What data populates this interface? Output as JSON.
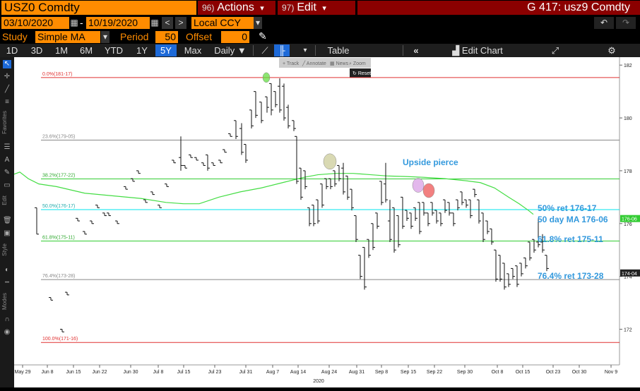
{
  "header": {
    "ticker": "USZ0 Comdty",
    "actions_num": "96)",
    "actions_label": "Actions",
    "edit_num": "97)",
    "edit_label": "Edit",
    "right_title": "G 417: usz9 Comdty",
    "dropdown_arrow": "▾"
  },
  "params": {
    "start_date": "03/10/2020",
    "dash": "-",
    "end_date": "10/19/2020",
    "currency": "Local CCY",
    "study_label": "Study",
    "study_value": "Simple MA",
    "period_label": "Period",
    "period_value": "50",
    "offset_label": "Offset",
    "offset_value": "0"
  },
  "toolbar": {
    "periods": [
      "1D",
      "3D",
      "1M",
      "6M",
      "YTD",
      "1Y",
      "5Y",
      "Max"
    ],
    "active_period": "5Y",
    "frequency": "Daily",
    "table_label": "Table",
    "edit_chart_label": "Edit Chart"
  },
  "sidebar": {
    "favorites_label": "Favorites",
    "edit_label": "Edit",
    "style_label": "Style",
    "modes_label": "Modes"
  },
  "chart_toolbar": {
    "track": "Track",
    "annotate": "Annotate",
    "news": "News",
    "zoom": "Zoom",
    "reset": "Reset"
  },
  "chart_data": {
    "type": "ohlc",
    "x_ticks": [
      "May 29",
      "Jun 8",
      "Jun 15",
      "Jun 22",
      "Jun 30",
      "Jul 8",
      "Jul 15",
      "Jul 23",
      "Jul 31",
      "Aug 7",
      "Aug 14",
      "Aug 24",
      "Aug 31",
      "Sep 8",
      "Sep 15",
      "Sep 22",
      "Sep 30",
      "Oct 8",
      "Oct 15",
      "Oct 23",
      "Oct 30",
      "Nov 9"
    ],
    "year_label": "2020",
    "y_ticks": [
      182,
      180,
      178,
      176,
      174,
      172
    ],
    "ylim": [
      170.65,
      182.3
    ],
    "fib_levels": [
      {
        "label": "0.0%(181-17)",
        "value": 181.53,
        "color": "#e03030"
      },
      {
        "label": "23.6%(179-05)",
        "value": 179.16,
        "color": "#888888"
      },
      {
        "label": "38.2%(177-22)",
        "value": 177.69,
        "color": "#33cc33"
      },
      {
        "label": "50.0%(176-17)",
        "value": 176.53,
        "color": "#00e5ee"
      },
      {
        "label": "61.8%(175-11)",
        "value": 175.34,
        "color": "#33cc33"
      },
      {
        "label": "76.4%(173-28)",
        "value": 173.88,
        "color": "#888888"
      },
      {
        "label": "100.0%(171-16)",
        "value": 171.5,
        "color": "#e03030"
      }
    ],
    "annotations": [
      {
        "text": "Upside pierce",
        "color": "#3399dd"
      },
      {
        "text": "50% ret 176-17",
        "color": "#3399dd"
      },
      {
        "text": "50 day MA 176-06",
        "color": "#3399dd"
      },
      {
        "text": "61.8% ret 175-11",
        "color": "#3399dd"
      },
      {
        "text": "76.4% ret 173-28",
        "color": "#3399dd"
      }
    ],
    "right_tags": [
      {
        "text": "176-06",
        "value": 176.19,
        "bg": "#33cc33"
      },
      {
        "text": "174-04",
        "value": 174.13,
        "bg": "#222222"
      }
    ],
    "ma_series": {
      "name": "50 day MA",
      "points": [
        [
          0,
          177.87
        ],
        [
          8,
          177.95
        ],
        [
          20,
          177.7
        ],
        [
          35,
          177.5
        ],
        [
          60,
          177.4
        ],
        [
          100,
          177.15
        ],
        [
          140,
          177.05
        ],
        [
          180,
          176.95
        ],
        [
          215,
          176.8
        ],
        [
          240,
          176.75
        ],
        [
          262,
          176.75
        ],
        [
          290,
          177.0
        ],
        [
          320,
          177.2
        ],
        [
          350,
          177.35
        ],
        [
          380,
          177.55
        ],
        [
          410,
          177.75
        ],
        [
          430,
          177.85
        ],
        [
          455,
          177.9
        ],
        [
          480,
          177.9
        ],
        [
          505,
          177.85
        ],
        [
          530,
          177.8
        ],
        [
          555,
          177.78
        ],
        [
          580,
          177.75
        ],
        [
          610,
          177.7
        ],
        [
          640,
          177.62
        ],
        [
          660,
          177.55
        ],
        [
          680,
          177.35
        ],
        [
          700,
          177.0
        ],
        [
          715,
          176.75
        ],
        [
          728,
          176.5
        ],
        [
          735,
          176.35
        ]
      ]
    },
    "ohlc_bars": [
      [
        32,
        175.6,
        176.6,
        176.6,
        175.6
      ],
      [
        52,
        173.1,
        173.2,
        173.2,
        173.1
      ],
      [
        68,
        171.9,
        172.0,
        172.0,
        171.9
      ],
      [
        75,
        173.3,
        173.4,
        173.4,
        173.3
      ],
      [
        90,
        176.1,
        176.2,
        176.2,
        176.1
      ],
      [
        100,
        175.6,
        175.7,
        175.7,
        175.6
      ],
      [
        110,
        176.0,
        176.1,
        176.1,
        176.0
      ],
      [
        118,
        176.6,
        176.7,
        176.7,
        176.6
      ],
      [
        128,
        176.3,
        176.4,
        176.4,
        176.3
      ],
      [
        134,
        176.3,
        176.4,
        176.4,
        176.3
      ],
      [
        146,
        176.0,
        176.1,
        176.1,
        176.0
      ],
      [
        158,
        177.3,
        177.4,
        177.4,
        177.3
      ],
      [
        168,
        177.6,
        177.7,
        177.7,
        177.6
      ],
      [
        176,
        177.9,
        178.0,
        178.0,
        177.9
      ],
      [
        186,
        176.8,
        176.9,
        176.9,
        176.8
      ],
      [
        196,
        177.1,
        177.2,
        177.2,
        177.1
      ],
      [
        206,
        176.6,
        176.7,
        176.7,
        176.6
      ],
      [
        216,
        177.4,
        177.5,
        177.5,
        177.4
      ],
      [
        226,
        178.3,
        178.4,
        178.4,
        178.3
      ],
      [
        236,
        178.0,
        178.5,
        179.3,
        178.2
      ],
      [
        242,
        178.1,
        178.2,
        178.2,
        178.1
      ],
      [
        250,
        178.5,
        178.6,
        178.6,
        178.5
      ],
      [
        258,
        178.4,
        178.5,
        178.5,
        178.4
      ],
      [
        268,
        178.2,
        178.3,
        178.3,
        178.2
      ],
      [
        274,
        178.0,
        178.6,
        178.6,
        178.1
      ],
      [
        282,
        178.2,
        178.3,
        178.3,
        178.2
      ],
      [
        292,
        178.3,
        178.4,
        178.4,
        178.3
      ],
      [
        298,
        178.7,
        178.8,
        178.8,
        178.7
      ],
      [
        306,
        179.3,
        179.4,
        179.4,
        179.3
      ],
      [
        314,
        179.2,
        179.9,
        179.9,
        179.3
      ],
      [
        322,
        178.6,
        179.6,
        179.8,
        178.7
      ],
      [
        328,
        178.3,
        179.0,
        179.0,
        178.4
      ],
      [
        336,
        179.6,
        180.3,
        180.3,
        179.7
      ],
      [
        342,
        180.0,
        181.0,
        181.0,
        180.1
      ],
      [
        350,
        179.8,
        180.6,
        180.6,
        179.9
      ],
      [
        358,
        180.2,
        180.8,
        180.8,
        180.4
      ],
      [
        364,
        180.1,
        181.3,
        181.3,
        180.3
      ],
      [
        370,
        180.4,
        181.0,
        181.0,
        180.5
      ],
      [
        376,
        180.2,
        181.2,
        181.5,
        180.3
      ],
      [
        382,
        179.9,
        181.2,
        181.3,
        180.0
      ],
      [
        388,
        179.6,
        180.4,
        180.5,
        179.7
      ],
      [
        396,
        179.5,
        179.9,
        179.9,
        179.6
      ],
      [
        400,
        177.5,
        179.3,
        179.3,
        177.6
      ],
      [
        406,
        176.9,
        178.1,
        178.1,
        177.0
      ],
      [
        412,
        177.3,
        178.0,
        178.0,
        177.4
      ],
      [
        418,
        175.9,
        176.6,
        176.6,
        176.0
      ],
      [
        424,
        175.9,
        176.7,
        176.7,
        176.0
      ],
      [
        430,
        176.0,
        176.9,
        176.9,
        176.1
      ],
      [
        436,
        176.6,
        177.5,
        177.5,
        176.7
      ],
      [
        442,
        177.3,
        177.7,
        177.7,
        177.4
      ],
      [
        448,
        177.3,
        177.7,
        177.7,
        177.4
      ],
      [
        454,
        177.4,
        178.0,
        178.0,
        177.5
      ],
      [
        460,
        177.6,
        178.2,
        178.2,
        177.7
      ],
      [
        466,
        177.1,
        178.1,
        178.3,
        177.2
      ],
      [
        472,
        176.9,
        177.8,
        177.8,
        177.0
      ],
      [
        478,
        176.5,
        177.3,
        177.3,
        176.6
      ],
      [
        484,
        175.3,
        176.3,
        176.3,
        175.4
      ],
      [
        490,
        173.9,
        174.8,
        174.8,
        174.0
      ],
      [
        496,
        173.5,
        175.1,
        175.1,
        173.6
      ],
      [
        502,
        174.7,
        175.4,
        175.4,
        174.8
      ],
      [
        508,
        175.0,
        176.0,
        176.0,
        175.1
      ],
      [
        514,
        175.8,
        176.4,
        176.4,
        175.9
      ],
      [
        520,
        176.7,
        177.6,
        177.6,
        176.8
      ],
      [
        526,
        176.8,
        177.5,
        178.3,
        176.9
      ],
      [
        532,
        175.3,
        176.1,
        176.9,
        175.4
      ],
      [
        538,
        174.9,
        176.6,
        176.6,
        175.0
      ],
      [
        544,
        175.1,
        176.3,
        176.3,
        175.2
      ],
      [
        550,
        175.8,
        177.0,
        177.0,
        175.9
      ],
      [
        556,
        176.1,
        176.5,
        176.5,
        176.2
      ],
      [
        562,
        175.8,
        176.4,
        176.4,
        175.9
      ],
      [
        568,
        176.1,
        176.6,
        176.6,
        176.2
      ],
      [
        574,
        175.6,
        176.8,
        176.8,
        175.7
      ],
      [
        580,
        176.3,
        176.8,
        176.8,
        176.4
      ],
      [
        586,
        175.9,
        176.4,
        176.4,
        176.0
      ],
      [
        592,
        176.3,
        176.8,
        176.8,
        176.4
      ],
      [
        598,
        176.0,
        176.5,
        176.5,
        176.1
      ],
      [
        604,
        175.9,
        176.4,
        176.4,
        176.0
      ],
      [
        610,
        176.4,
        176.9,
        176.9,
        176.5
      ],
      [
        616,
        176.3,
        176.8,
        176.8,
        176.4
      ],
      [
        622,
        175.9,
        176.4,
        176.4,
        176.0
      ],
      [
        628,
        176.5,
        176.9,
        176.9,
        176.6
      ],
      [
        634,
        176.7,
        177.2,
        177.2,
        176.8
      ],
      [
        640,
        176.6,
        176.9,
        176.9,
        176.7
      ],
      [
        646,
        176.2,
        176.9,
        176.9,
        176.3
      ],
      [
        652,
        177.0,
        177.3,
        177.3,
        177.1
      ],
      [
        658,
        176.0,
        176.9,
        176.9,
        176.1
      ],
      [
        664,
        175.3,
        176.4,
        176.4,
        175.4
      ],
      [
        670,
        175.6,
        176.1,
        176.1,
        175.7
      ],
      [
        676,
        175.2,
        175.8,
        175.8,
        175.3
      ],
      [
        682,
        173.8,
        175.0,
        175.0,
        173.9
      ],
      [
        688,
        173.8,
        174.8,
        174.8,
        173.9
      ],
      [
        694,
        173.5,
        174.5,
        174.5,
        173.6
      ],
      [
        700,
        173.6,
        174.1,
        174.1,
        173.7
      ],
      [
        706,
        173.9,
        174.3,
        174.3,
        174.0
      ],
      [
        712,
        173.6,
        174.4,
        174.4,
        173.7
      ],
      [
        718,
        174.0,
        174.5,
        174.5,
        174.1
      ],
      [
        724,
        174.3,
        174.7,
        174.7,
        174.4
      ],
      [
        730,
        174.6,
        175.3,
        175.3,
        174.7
      ],
      [
        736,
        174.9,
        175.4,
        175.4,
        175.0
      ],
      [
        742,
        175.1,
        175.3,
        176.2,
        175.2
      ],
      [
        748,
        174.9,
        175.3,
        175.6,
        175.0
      ],
      [
        754,
        174.2,
        174.8,
        174.8,
        174.3
      ]
    ],
    "markers": [
      {
        "x": 357,
        "y": 181.53,
        "color": "#66dd44"
      },
      {
        "x": 447,
        "y": 178.35,
        "color": "#cccc99"
      },
      {
        "x": 572,
        "y": 177.45,
        "color": "#d9a0e6"
      },
      {
        "x": 587,
        "y": 177.25,
        "color": "#ee5555"
      }
    ]
  }
}
